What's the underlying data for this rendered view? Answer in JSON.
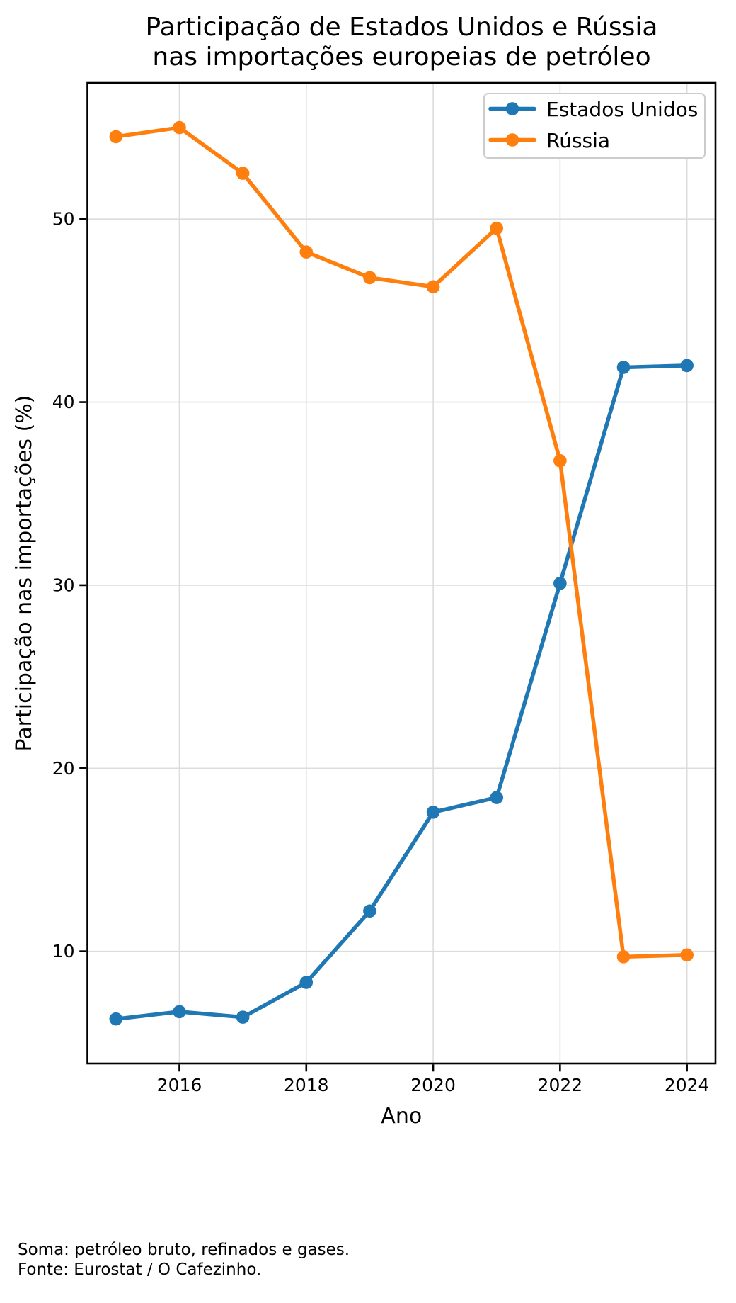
{
  "title": {
    "line1": "Participação de Estados Unidos e Rússia",
    "line2": "nas importações europeias de petróleo"
  },
  "footer": {
    "line1": "Soma: petróleo bruto, refinados e gases.",
    "line2": "Fonte: Eurostat / O Cafezinho."
  },
  "chart_data": {
    "type": "line",
    "title": "Participação de Estados Unidos e Rússia nas importações europeias de petróleo",
    "xlabel": "Ano",
    "ylabel": "Participação nas importações (%)",
    "x": [
      2015,
      2016,
      2017,
      2018,
      2019,
      2020,
      2021,
      2022,
      2023,
      2024
    ],
    "series": [
      {
        "name": "Estados Unidos",
        "color": "#1f77b4",
        "values": [
          6.3,
          6.7,
          6.4,
          8.3,
          12.2,
          17.6,
          18.4,
          30.1,
          41.9,
          42.0
        ]
      },
      {
        "name": "Rússia",
        "color": "#ff7f0e",
        "values": [
          54.5,
          55.0,
          52.5,
          48.2,
          46.8,
          46.3,
          49.5,
          36.8,
          9.7,
          9.8
        ]
      }
    ],
    "xticks": [
      2016,
      2018,
      2020,
      2022,
      2024
    ],
    "yticks": [
      10,
      20,
      30,
      40,
      50
    ],
    "xlim": [
      2014.55,
      2024.45
    ],
    "ylim": [
      3.87,
      57.44
    ],
    "grid": true,
    "legend_position": "top-right",
    "colors": {
      "grid": "#dcdcdc",
      "spine": "#000000",
      "text": "#000000",
      "legend_border": "#cccccc",
      "legend_fill": "#ffffff",
      "background": "#ffffff"
    }
  }
}
